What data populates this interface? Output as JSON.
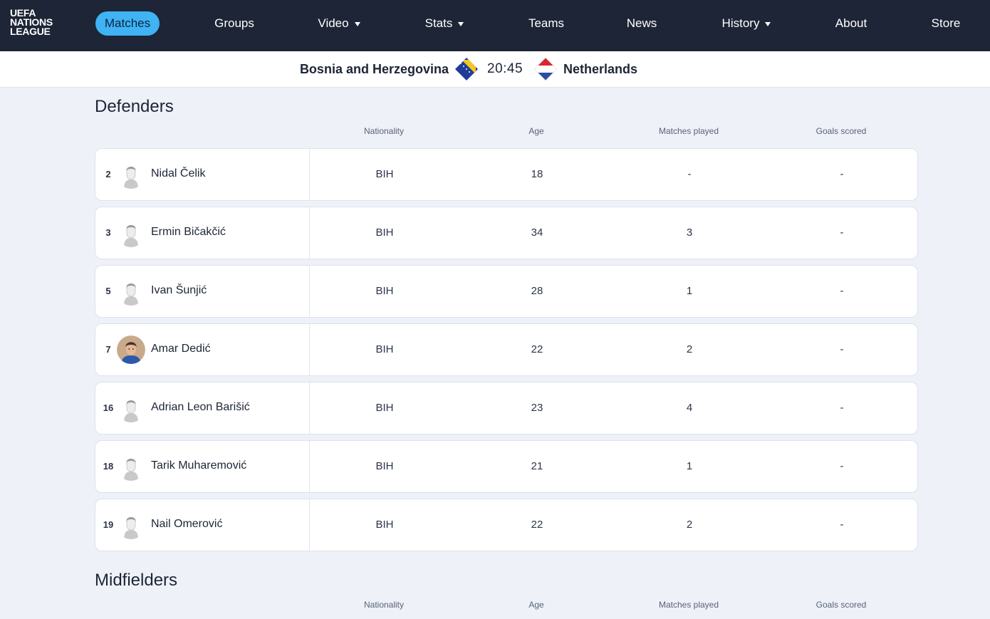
{
  "brand": {
    "logo_line1": "UEFA",
    "logo_line2": "NATIONS",
    "logo_line3": "LEAGUE"
  },
  "nav": {
    "matches": "Matches",
    "groups": "Groups",
    "video": "Video",
    "stats": "Stats",
    "teams": "Teams",
    "news": "News",
    "history": "History",
    "about": "About",
    "store": "Store"
  },
  "match": {
    "home_team": "Bosnia and Herzegovina",
    "time": "20:45",
    "away_team": "Netherlands"
  },
  "columns": {
    "nationality": "Nationality",
    "age": "Age",
    "matches_played": "Matches played",
    "goals_scored": "Goals scored"
  },
  "defenders": {
    "title": "Defenders",
    "players": [
      {
        "number": "2",
        "name": "Nidal Čelik",
        "nationality": "BIH",
        "age": "18",
        "matches": "-",
        "goals": "-",
        "photo": "placeholder"
      },
      {
        "number": "3",
        "name": "Ermin Bičakčić",
        "nationality": "BIH",
        "age": "34",
        "matches": "3",
        "goals": "-",
        "photo": "placeholder"
      },
      {
        "number": "5",
        "name": "Ivan Šunjić",
        "nationality": "BIH",
        "age": "28",
        "matches": "1",
        "goals": "-",
        "photo": "placeholder"
      },
      {
        "number": "7",
        "name": "Amar Dedić",
        "nationality": "BIH",
        "age": "22",
        "matches": "2",
        "goals": "-",
        "photo": "portrait"
      },
      {
        "number": "16",
        "name": "Adrian Leon Barišić",
        "nationality": "BIH",
        "age": "23",
        "matches": "4",
        "goals": "-",
        "photo": "placeholder"
      },
      {
        "number": "18",
        "name": "Tarik Muharemović",
        "nationality": "BIH",
        "age": "21",
        "matches": "1",
        "goals": "-",
        "photo": "placeholder"
      },
      {
        "number": "19",
        "name": "Nail Omerović",
        "nationality": "BIH",
        "age": "22",
        "matches": "2",
        "goals": "-",
        "photo": "placeholder"
      }
    ]
  },
  "midfielders": {
    "title": "Midfielders"
  },
  "colors": {
    "nav_bg": "#1d2536",
    "active_pill": "#3fb3f4",
    "page_bg": "#eef1f8",
    "card_bg": "#ffffff"
  },
  "icons": {
    "dropdown": "caret-down-icon",
    "placeholder_avatar": "player-silhouette-icon",
    "flag_home": "bosnia-flag-icon",
    "flag_away": "netherlands-flag-icon"
  }
}
